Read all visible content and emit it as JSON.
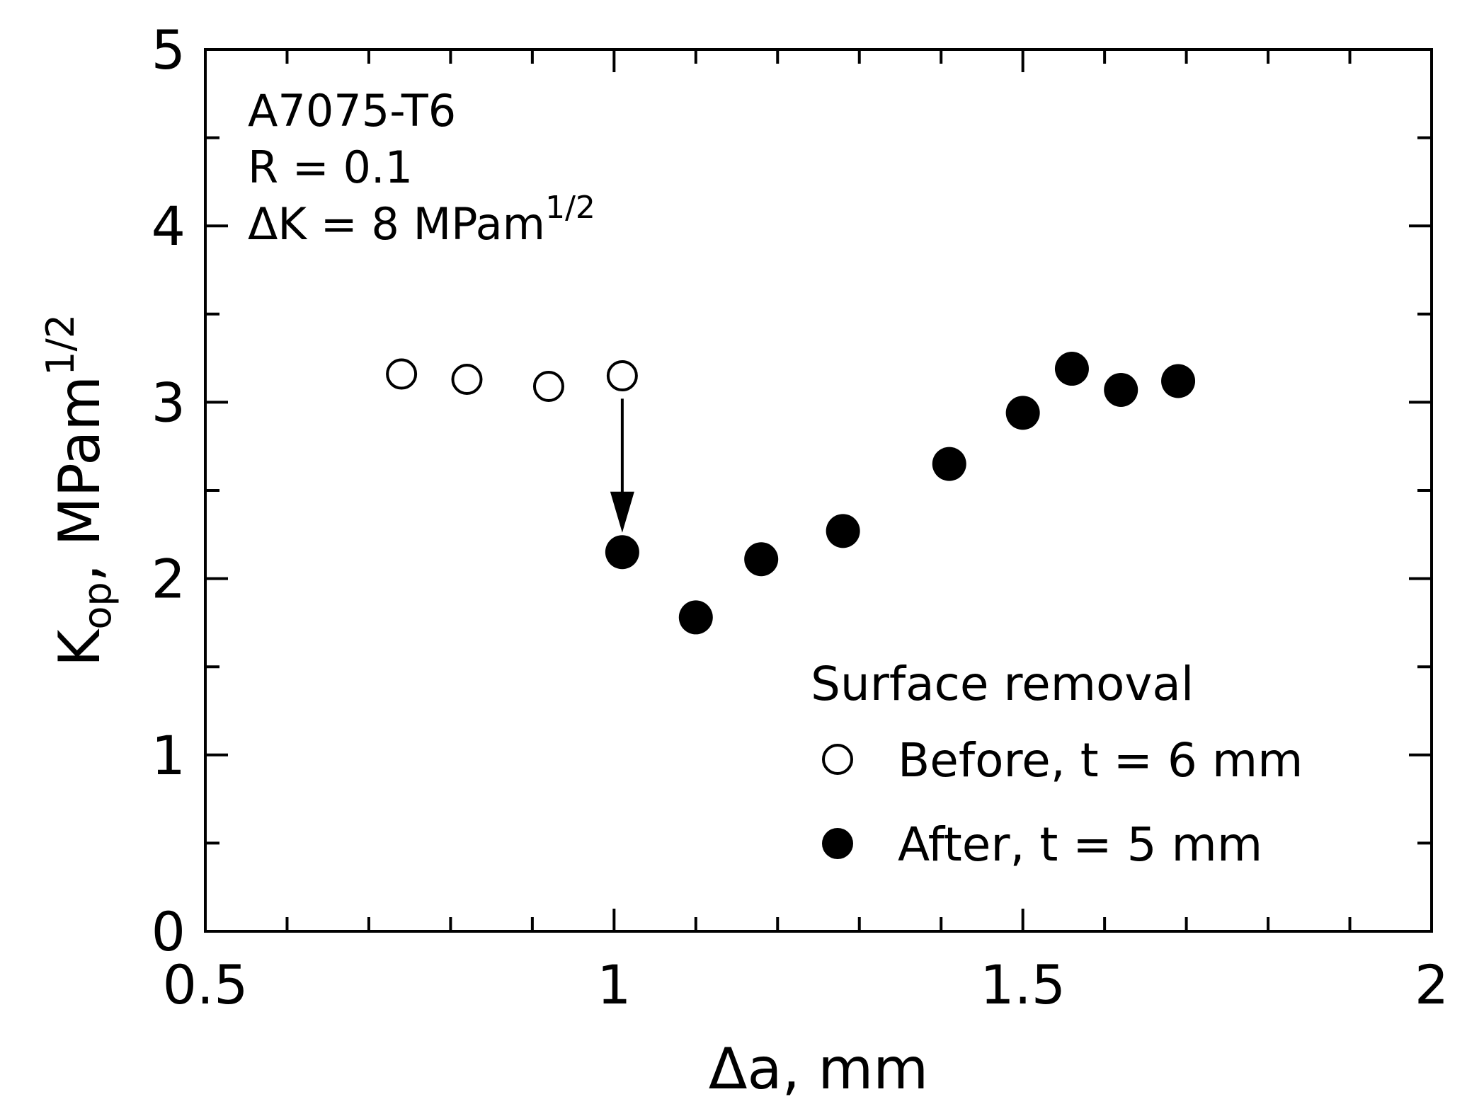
{
  "chart_data": {
    "type": "scatter",
    "xlabel": "Δa, mm",
    "ylabel": {
      "main": "K",
      "sub": "op",
      "unit": ", MPam",
      "sup": "1/2"
    },
    "xlim": [
      0.5,
      2
    ],
    "ylim": [
      0,
      5
    ],
    "x_ticks": [
      "0.5",
      "1",
      "1.5",
      "2"
    ],
    "y_ticks": [
      "0",
      "1",
      "2",
      "3",
      "4",
      "5"
    ],
    "x_tick_values": [
      0.5,
      1,
      1.5,
      2
    ],
    "y_tick_values": [
      0,
      1,
      2,
      3,
      4,
      5
    ],
    "x_minor_step": 0.1,
    "y_minor_step": 0.5,
    "grid": false,
    "annotation": {
      "material": "A7075-T6",
      "ratio": "R = 0.1",
      "delta_k": "ΔK = 8 MPam",
      "delta_k_sup": "1/2"
    },
    "legend": {
      "title": "Surface removal",
      "placement": "bottom-right"
    },
    "series": [
      {
        "name": "Before, t = 6 mm",
        "marker": "open-circle",
        "color": "#000000",
        "points": [
          {
            "x": 0.74,
            "y": 3.16
          },
          {
            "x": 0.82,
            "y": 3.13
          },
          {
            "x": 0.92,
            "y": 3.09
          },
          {
            "x": 1.01,
            "y": 3.15
          }
        ]
      },
      {
        "name": "After, t = 5 mm",
        "marker": "filled-circle",
        "color": "#000000",
        "points": [
          {
            "x": 1.01,
            "y": 2.15
          },
          {
            "x": 1.1,
            "y": 1.78
          },
          {
            "x": 1.18,
            "y": 2.11
          },
          {
            "x": 1.28,
            "y": 2.27
          },
          {
            "x": 1.41,
            "y": 2.65
          },
          {
            "x": 1.5,
            "y": 2.94
          },
          {
            "x": 1.56,
            "y": 3.19
          },
          {
            "x": 1.62,
            "y": 3.07
          },
          {
            "x": 1.69,
            "y": 3.12
          }
        ]
      }
    ],
    "arrow": {
      "x": 1.01,
      "y_from": 3.02,
      "y_to": 2.26
    }
  }
}
